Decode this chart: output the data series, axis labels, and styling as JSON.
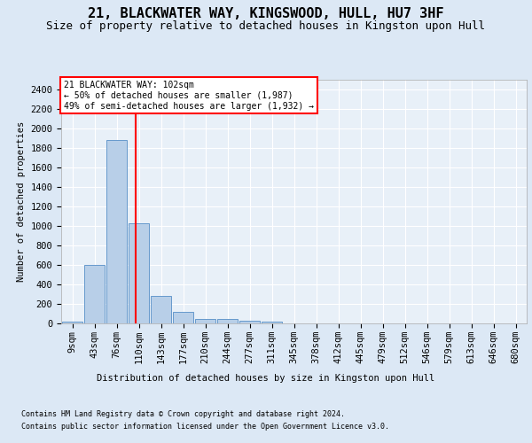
{
  "title": "21, BLACKWATER WAY, KINGSWOOD, HULL, HU7 3HF",
  "subtitle": "Size of property relative to detached houses in Kingston upon Hull",
  "xlabel_bottom": "Distribution of detached houses by size in Kingston upon Hull",
  "ylabel": "Number of detached properties",
  "footnote1": "Contains HM Land Registry data © Crown copyright and database right 2024.",
  "footnote2": "Contains public sector information licensed under the Open Government Licence v3.0.",
  "bin_labels": [
    "9sqm",
    "43sqm",
    "76sqm",
    "110sqm",
    "143sqm",
    "177sqm",
    "210sqm",
    "244sqm",
    "277sqm",
    "311sqm",
    "345sqm",
    "378sqm",
    "412sqm",
    "445sqm",
    "479sqm",
    "512sqm",
    "546sqm",
    "579sqm",
    "613sqm",
    "646sqm",
    "680sqm"
  ],
  "bar_values": [
    20,
    600,
    1880,
    1030,
    280,
    115,
    50,
    45,
    28,
    20,
    0,
    0,
    0,
    0,
    0,
    0,
    0,
    0,
    0,
    0,
    0
  ],
  "bar_color": "#b8cfe8",
  "bar_edgecolor": "#6699cc",
  "property_line_x": 2.85,
  "property_line_color": "red",
  "annotation_box_text": "21 BLACKWATER WAY: 102sqm\n← 50% of detached houses are smaller (1,987)\n49% of semi-detached houses are larger (1,932) →",
  "ylim": [
    0,
    2500
  ],
  "yticks": [
    0,
    200,
    400,
    600,
    800,
    1000,
    1200,
    1400,
    1600,
    1800,
    2000,
    2200,
    2400
  ],
  "bg_color": "#dce8f5",
  "plot_bg_color": "#e8f0f8",
  "grid_color": "white",
  "title_fontsize": 11,
  "subtitle_fontsize": 9,
  "label_fontsize": 7.5,
  "annot_fontsize": 7,
  "footnote_fontsize": 6
}
